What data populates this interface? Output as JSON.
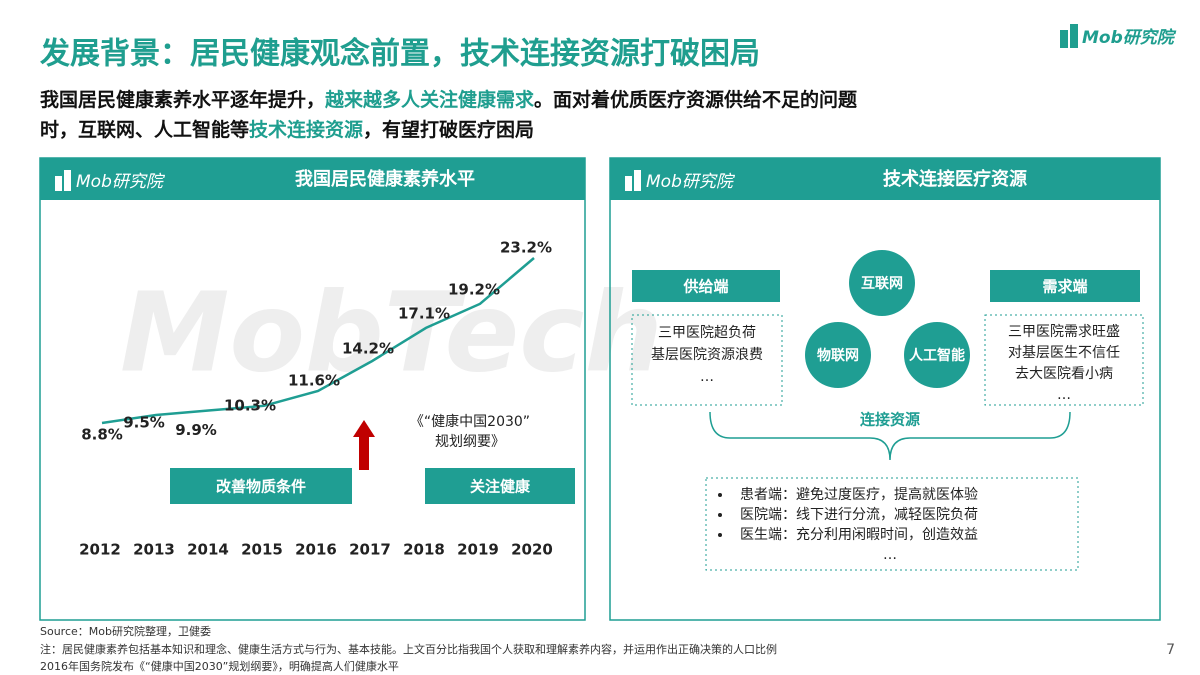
{
  "header": {
    "title": "发展背景：居民健康观念前置，技术连接资源打破困局",
    "logo": "Mob研究院",
    "subtitle_line1": [
      "我国居民健康素养水平逐年提升，",
      "越来越多人关注健康需求",
      "。面对着优质医疗资源供给不足的问题"
    ],
    "subtitle_line2": [
      "时，互联网、人工智能等",
      "技术连接资源",
      "，有望打破医疗困局"
    ]
  },
  "watermark": "MobTech",
  "left_panel": {
    "logo": "Mob研究院",
    "title": "我国居民健康素养水平"
  },
  "chart_data": {
    "type": "line",
    "categories": [
      "2012",
      "2013",
      "2014",
      "2015",
      "2016",
      "2017",
      "2018",
      "2019",
      "2020"
    ],
    "values": [
      8.8,
      9.5,
      9.9,
      10.3,
      11.6,
      14.2,
      17.1,
      19.2,
      23.2
    ],
    "value_labels": [
      "8.8%",
      "9.5%",
      "9.9%",
      "10.3%",
      "11.6%",
      "14.2%",
      "17.1%",
      "19.2%",
      "23.2%"
    ],
    "color": "#1f9e93",
    "annotations": {
      "policy": [
        "《“健康中国2030”",
        "规划纲要》"
      ],
      "phase1": "改善物质条件",
      "phase2": "关注健康"
    }
  },
  "right_panel": {
    "logo": "Mob研究院",
    "title": "技术连接医疗资源",
    "supply": "供给端",
    "demand": "需求端",
    "tech": [
      "互联网",
      "物联网",
      "人工智能"
    ],
    "supply_items": [
      "三甲医院超负荷",
      "基层医院资源浪费",
      "…"
    ],
    "demand_items": [
      "三甲医院需求旺盛",
      "对基层医生不信任",
      "去大医院看小病",
      "…"
    ],
    "connect": "连接资源",
    "outcomes": [
      "患者端：避免过度医疗，提高就医体验",
      "医院端：线下进行分流，减轻医院负荷",
      "医生端：充分利用闲暇时间，创造效益",
      "…"
    ]
  },
  "footer": {
    "source": "Source：Mob研究院整理，卫健委",
    "notes": [
      "注：居民健康素养包括基本知识和理念、健康生活方式与行为、基本技能。上文百分比指我国个人获取和理解素养内容，并运用作出正确决策的人口比例",
      "2016年国务院发布《“健康中国2030”规划纲要》，明确提高人们健康水平"
    ],
    "page": "7"
  }
}
